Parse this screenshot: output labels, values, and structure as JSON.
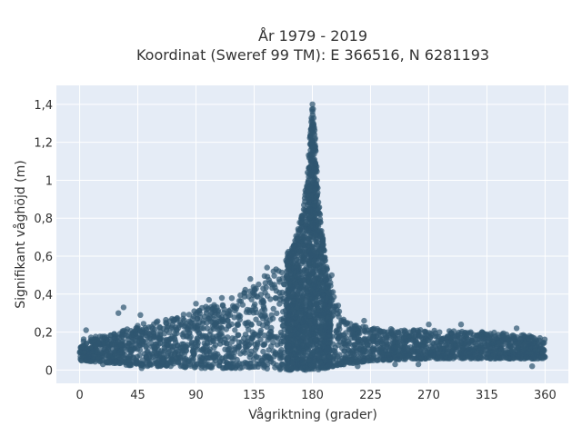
{
  "chart_data": {
    "type": "scatter",
    "title_lines": [
      "År 1979 - 2019",
      "Koordinat (Sweref 99 TM): E 366516, N 6281193"
    ],
    "xlabel": "Vågriktning (grader)",
    "ylabel": "Signifikant våghöjd (m)",
    "xlim": [
      -18,
      378
    ],
    "ylim": [
      -0.07,
      1.5
    ],
    "x_ticks": [
      0,
      45,
      90,
      135,
      180,
      225,
      270,
      315,
      360
    ],
    "y_ticks": [
      0,
      0.2,
      0.4,
      0.6,
      0.8,
      1,
      1.2,
      1.4
    ],
    "y_tick_labels": [
      "0",
      "0,2",
      "0,4",
      "0,6",
      "0,8",
      "1",
      "1,2",
      "1,4"
    ],
    "grid": true,
    "colors": {
      "background": "#e5ecf6",
      "grid": "#ffffff",
      "marker": "#2f5670"
    },
    "envelope": [
      {
        "x": 0,
        "low": 0.05,
        "high": 0.17
      },
      {
        "x": 20,
        "low": 0.04,
        "high": 0.18
      },
      {
        "x": 45,
        "low": 0.02,
        "high": 0.24
      },
      {
        "x": 70,
        "low": 0.02,
        "high": 0.27
      },
      {
        "x": 90,
        "low": 0.01,
        "high": 0.32
      },
      {
        "x": 110,
        "low": 0.01,
        "high": 0.36
      },
      {
        "x": 125,
        "low": 0.01,
        "high": 0.42
      },
      {
        "x": 140,
        "low": 0.01,
        "high": 0.48
      },
      {
        "x": 155,
        "low": 0.0,
        "high": 0.56
      },
      {
        "x": 165,
        "low": 0.0,
        "high": 0.66
      },
      {
        "x": 172,
        "low": 0.0,
        "high": 0.82
      },
      {
        "x": 176,
        "low": 0.0,
        "high": 1.05
      },
      {
        "x": 179,
        "low": 0.0,
        "high": 1.3
      },
      {
        "x": 180,
        "low": 0.0,
        "high": 1.43
      },
      {
        "x": 182,
        "low": 0.0,
        "high": 1.25
      },
      {
        "x": 185,
        "low": 0.0,
        "high": 0.88
      },
      {
        "x": 190,
        "low": 0.01,
        "high": 0.58
      },
      {
        "x": 197,
        "low": 0.02,
        "high": 0.38
      },
      {
        "x": 205,
        "low": 0.03,
        "high": 0.26
      },
      {
        "x": 225,
        "low": 0.05,
        "high": 0.22
      },
      {
        "x": 270,
        "low": 0.06,
        "high": 0.21
      },
      {
        "x": 315,
        "low": 0.06,
        "high": 0.2
      },
      {
        "x": 340,
        "low": 0.06,
        "high": 0.19
      },
      {
        "x": 360,
        "low": 0.06,
        "high": 0.17
      }
    ],
    "outliers": [
      {
        "x": 5,
        "y": 0.21
      },
      {
        "x": 18,
        "y": 0.03
      },
      {
        "x": 30,
        "y": 0.3
      },
      {
        "x": 34,
        "y": 0.33
      },
      {
        "x": 47,
        "y": 0.29
      },
      {
        "x": 48,
        "y": 0.01
      },
      {
        "x": 90,
        "y": 0.35
      },
      {
        "x": 100,
        "y": 0.37
      },
      {
        "x": 110,
        "y": 0.38
      },
      {
        "x": 132,
        "y": 0.48
      },
      {
        "x": 145,
        "y": 0.54
      },
      {
        "x": 150,
        "y": 0.52
      },
      {
        "x": 195,
        "y": 0.5
      },
      {
        "x": 200,
        "y": 0.34
      },
      {
        "x": 215,
        "y": 0.02
      },
      {
        "x": 220,
        "y": 0.26
      },
      {
        "x": 244,
        "y": 0.03
      },
      {
        "x": 262,
        "y": 0.03
      },
      {
        "x": 270,
        "y": 0.24
      },
      {
        "x": 295,
        "y": 0.24
      },
      {
        "x": 338,
        "y": 0.22
      },
      {
        "x": 350,
        "y": 0.02
      }
    ]
  }
}
